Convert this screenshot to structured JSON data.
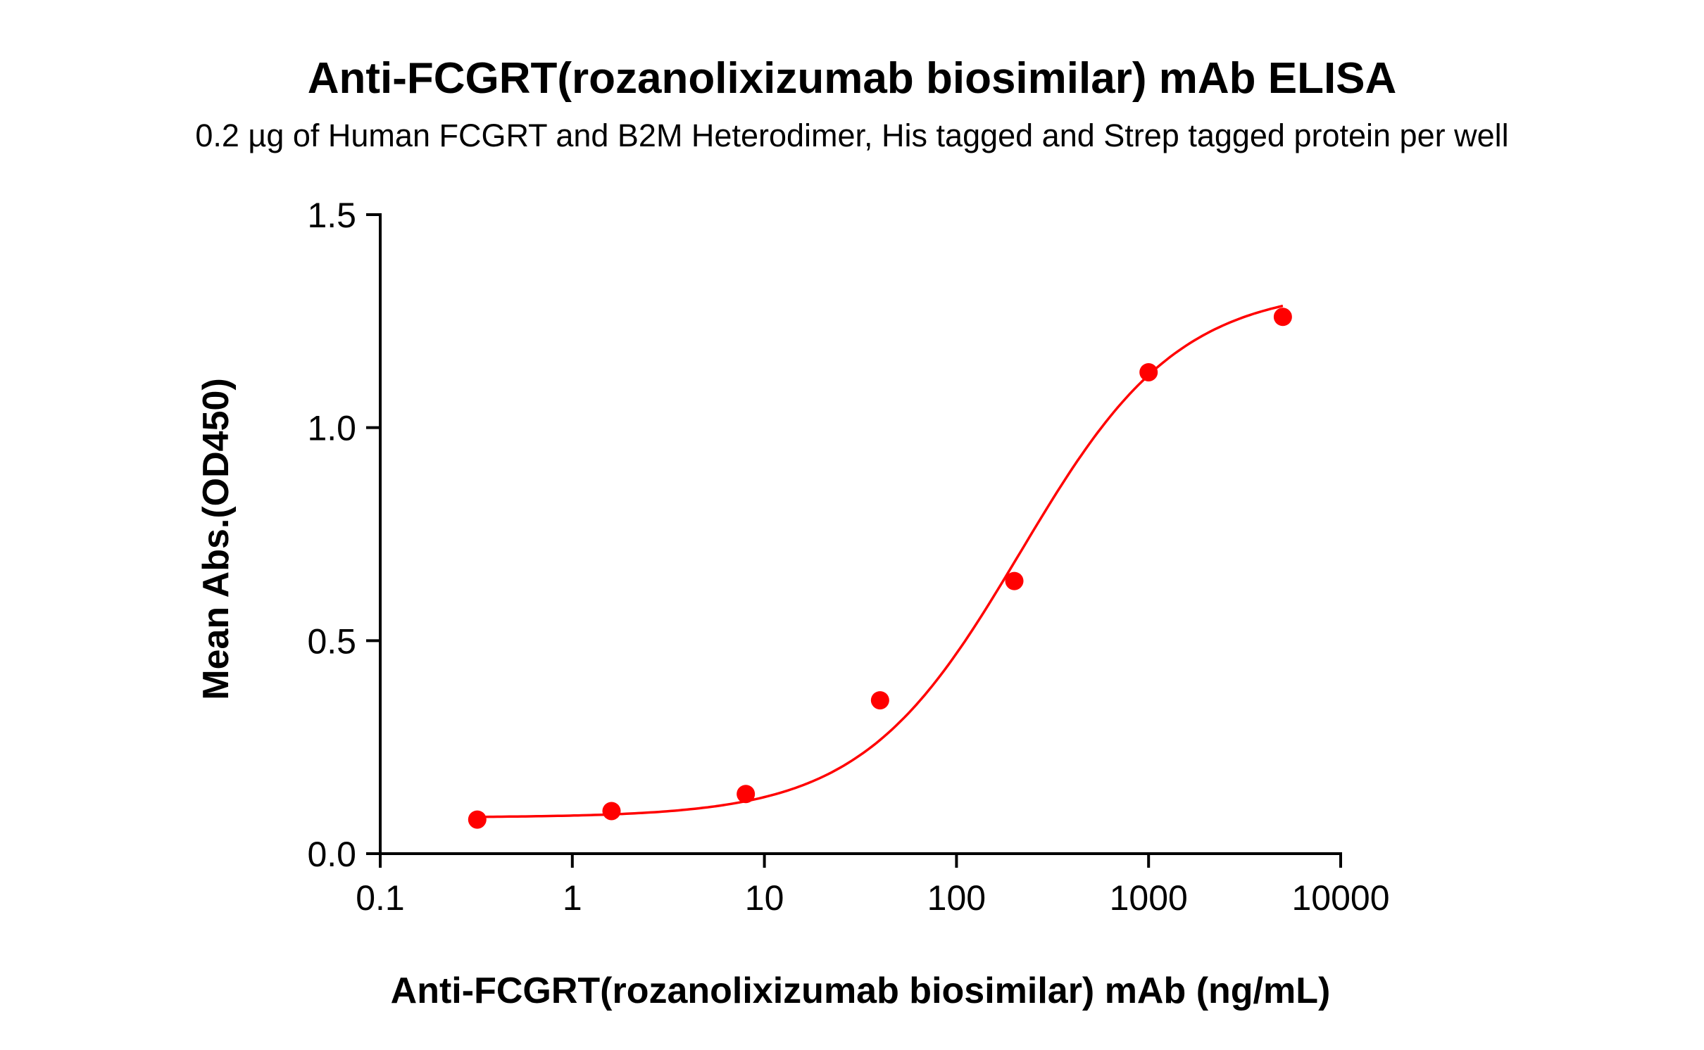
{
  "chart_data": {
    "type": "scatter",
    "title": "Anti-FCGRT(rozanolixizumab biosimilar) mAb ELISA",
    "subtitle": "0.2 µg of Human FCGRT and B2M Heterodimer, His tagged and Strep tagged protein per well",
    "xlabel": "Anti-FCGRT(rozanolixizumab biosimilar) mAb (ng/mL)",
    "ylabel": "Mean Abs.(OD450)",
    "xscale": "log",
    "xlim": [
      0.1,
      10000
    ],
    "ylim": [
      0,
      1.5
    ],
    "xticks": [
      "0.1",
      "1",
      "10",
      "100",
      "1000",
      "10000"
    ],
    "yticks": [
      "0.0",
      "0.5",
      "1.0",
      "1.5"
    ],
    "grid": false,
    "color": "#ff0000",
    "series": [
      {
        "x": [
          0.32,
          1.6,
          8,
          40,
          200,
          1000,
          5000
        ],
        "y": [
          0.08,
          0.1,
          0.14,
          0.36,
          0.64,
          1.13,
          1.26
        ],
        "fit": "4PL sigmoidal curve"
      }
    ]
  }
}
